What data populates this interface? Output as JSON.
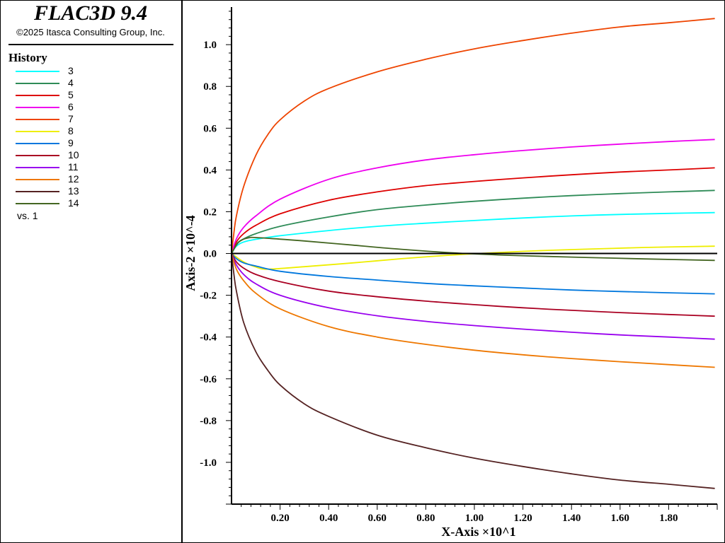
{
  "app": {
    "title": "FLAC3D 9.4",
    "copyright": "©2025 Itasca Consulting Group, Inc."
  },
  "legend": {
    "title": "History",
    "vs_label": "vs. 1"
  },
  "chart_data": {
    "type": "line",
    "xlabel": "X-Axis ×10^1",
    "ylabel": "Axis-2 ×10^-4",
    "xlim": [
      0,
      2.0
    ],
    "ylim": [
      -1.2,
      1.18
    ],
    "x_ticks": [
      "0.20",
      "0.40",
      "0.60",
      "0.80",
      "1.00",
      "1.20",
      "1.40",
      "1.60",
      "1.80"
    ],
    "y_ticks": [
      "1.0",
      "0.8",
      "0.6",
      "0.4",
      "0.2",
      "0.0",
      "-0.2",
      "-0.4",
      "-0.6",
      "-0.8",
      "-1.0"
    ],
    "zero_line": true,
    "grid": false,
    "series": [
      {
        "name": "3",
        "color": "#00FFFF",
        "points": [
          [
            0,
            0
          ],
          [
            0.02,
            0.035
          ],
          [
            0.05,
            0.055
          ],
          [
            0.1,
            0.068
          ],
          [
            0.2,
            0.085
          ],
          [
            0.4,
            0.11
          ],
          [
            0.6,
            0.13
          ],
          [
            0.8,
            0.145
          ],
          [
            1.0,
            0.158
          ],
          [
            1.2,
            0.17
          ],
          [
            1.4,
            0.18
          ],
          [
            1.6,
            0.187
          ],
          [
            1.8,
            0.192
          ],
          [
            1.99,
            0.196
          ]
        ]
      },
      {
        "name": "4",
        "color": "#2E8B57",
        "points": [
          [
            0,
            0
          ],
          [
            0.02,
            0.045
          ],
          [
            0.05,
            0.07
          ],
          [
            0.1,
            0.095
          ],
          [
            0.2,
            0.13
          ],
          [
            0.4,
            0.175
          ],
          [
            0.6,
            0.21
          ],
          [
            0.8,
            0.232
          ],
          [
            1.0,
            0.25
          ],
          [
            1.2,
            0.265
          ],
          [
            1.4,
            0.277
          ],
          [
            1.6,
            0.287
          ],
          [
            1.8,
            0.295
          ],
          [
            1.99,
            0.302
          ]
        ]
      },
      {
        "name": "5",
        "color": "#DD0000",
        "points": [
          [
            0,
            0
          ],
          [
            0.02,
            0.055
          ],
          [
            0.05,
            0.095
          ],
          [
            0.1,
            0.135
          ],
          [
            0.2,
            0.19
          ],
          [
            0.4,
            0.255
          ],
          [
            0.6,
            0.295
          ],
          [
            0.8,
            0.325
          ],
          [
            1.0,
            0.345
          ],
          [
            1.2,
            0.362
          ],
          [
            1.4,
            0.377
          ],
          [
            1.6,
            0.39
          ],
          [
            1.8,
            0.4
          ],
          [
            1.99,
            0.41
          ]
        ]
      },
      {
        "name": "6",
        "color": "#EE00EE",
        "points": [
          [
            0,
            0
          ],
          [
            0.02,
            0.07
          ],
          [
            0.05,
            0.125
          ],
          [
            0.1,
            0.18
          ],
          [
            0.2,
            0.26
          ],
          [
            0.4,
            0.355
          ],
          [
            0.6,
            0.41
          ],
          [
            0.8,
            0.448
          ],
          [
            1.0,
            0.473
          ],
          [
            1.2,
            0.493
          ],
          [
            1.4,
            0.51
          ],
          [
            1.6,
            0.524
          ],
          [
            1.8,
            0.536
          ],
          [
            1.99,
            0.546
          ]
        ]
      },
      {
        "name": "7",
        "color": "#EE4400",
        "points": [
          [
            0,
            0
          ],
          [
            0.01,
            0.1
          ],
          [
            0.02,
            0.18
          ],
          [
            0.05,
            0.32
          ],
          [
            0.1,
            0.47
          ],
          [
            0.15,
            0.57
          ],
          [
            0.2,
            0.64
          ],
          [
            0.3,
            0.73
          ],
          [
            0.4,
            0.79
          ],
          [
            0.6,
            0.87
          ],
          [
            0.8,
            0.93
          ],
          [
            1.0,
            0.98
          ],
          [
            1.2,
            1.02
          ],
          [
            1.4,
            1.055
          ],
          [
            1.6,
            1.085
          ],
          [
            1.8,
            1.105
          ],
          [
            1.99,
            1.125
          ]
        ]
      },
      {
        "name": "8",
        "color": "#EEEE00",
        "points": [
          [
            0,
            0
          ],
          [
            0.05,
            -0.04
          ],
          [
            0.1,
            -0.065
          ],
          [
            0.15,
            -0.075
          ],
          [
            0.3,
            -0.063
          ],
          [
            0.5,
            -0.045
          ],
          [
            0.7,
            -0.025
          ],
          [
            0.9,
            -0.008
          ],
          [
            1.1,
            0.005
          ],
          [
            1.3,
            0.015
          ],
          [
            1.5,
            0.022
          ],
          [
            1.7,
            0.029
          ],
          [
            1.99,
            0.035
          ]
        ]
      },
      {
        "name": "9",
        "color": "#0077DD",
        "points": [
          [
            0,
            0
          ],
          [
            0.02,
            -0.025
          ],
          [
            0.05,
            -0.045
          ],
          [
            0.1,
            -0.06
          ],
          [
            0.2,
            -0.085
          ],
          [
            0.4,
            -0.11
          ],
          [
            0.6,
            -0.127
          ],
          [
            0.8,
            -0.143
          ],
          [
            1.0,
            -0.155
          ],
          [
            1.2,
            -0.165
          ],
          [
            1.4,
            -0.175
          ],
          [
            1.6,
            -0.182
          ],
          [
            1.8,
            -0.188
          ],
          [
            1.99,
            -0.193
          ]
        ]
      },
      {
        "name": "10",
        "color": "#AA0022",
        "points": [
          [
            0,
            0
          ],
          [
            0.02,
            -0.04
          ],
          [
            0.05,
            -0.07
          ],
          [
            0.1,
            -0.1
          ],
          [
            0.2,
            -0.135
          ],
          [
            0.4,
            -0.18
          ],
          [
            0.6,
            -0.207
          ],
          [
            0.8,
            -0.228
          ],
          [
            1.0,
            -0.245
          ],
          [
            1.2,
            -0.26
          ],
          [
            1.4,
            -0.272
          ],
          [
            1.6,
            -0.283
          ],
          [
            1.8,
            -0.292
          ],
          [
            1.99,
            -0.3
          ]
        ]
      },
      {
        "name": "11",
        "color": "#9900EE",
        "points": [
          [
            0,
            0
          ],
          [
            0.02,
            -0.055
          ],
          [
            0.05,
            -0.1
          ],
          [
            0.1,
            -0.145
          ],
          [
            0.2,
            -0.2
          ],
          [
            0.4,
            -0.26
          ],
          [
            0.6,
            -0.298
          ],
          [
            0.8,
            -0.325
          ],
          [
            1.0,
            -0.345
          ],
          [
            1.2,
            -0.362
          ],
          [
            1.4,
            -0.377
          ],
          [
            1.6,
            -0.39
          ],
          [
            1.8,
            -0.4
          ],
          [
            1.99,
            -0.41
          ]
        ]
      },
      {
        "name": "12",
        "color": "#EE7700",
        "points": [
          [
            0,
            0
          ],
          [
            0.02,
            -0.075
          ],
          [
            0.05,
            -0.13
          ],
          [
            0.1,
            -0.19
          ],
          [
            0.2,
            -0.265
          ],
          [
            0.4,
            -0.35
          ],
          [
            0.6,
            -0.4
          ],
          [
            0.8,
            -0.435
          ],
          [
            1.0,
            -0.463
          ],
          [
            1.2,
            -0.485
          ],
          [
            1.4,
            -0.503
          ],
          [
            1.6,
            -0.518
          ],
          [
            1.8,
            -0.532
          ],
          [
            1.99,
            -0.545
          ]
        ]
      },
      {
        "name": "13",
        "color": "#552222",
        "points": [
          [
            0,
            0
          ],
          [
            0.01,
            -0.1
          ],
          [
            0.02,
            -0.18
          ],
          [
            0.05,
            -0.33
          ],
          [
            0.1,
            -0.47
          ],
          [
            0.15,
            -0.56
          ],
          [
            0.2,
            -0.63
          ],
          [
            0.3,
            -0.72
          ],
          [
            0.4,
            -0.78
          ],
          [
            0.6,
            -0.87
          ],
          [
            0.8,
            -0.93
          ],
          [
            1.0,
            -0.98
          ],
          [
            1.2,
            -1.02
          ],
          [
            1.4,
            -1.055
          ],
          [
            1.6,
            -1.085
          ],
          [
            1.8,
            -1.105
          ],
          [
            1.99,
            -1.125
          ]
        ]
      },
      {
        "name": "14",
        "color": "#446622",
        "points": [
          [
            0,
            0
          ],
          [
            0.03,
            0.055
          ],
          [
            0.07,
            0.075
          ],
          [
            0.12,
            0.075
          ],
          [
            0.3,
            0.06
          ],
          [
            0.5,
            0.04
          ],
          [
            0.7,
            0.02
          ],
          [
            0.9,
            0.004
          ],
          [
            1.1,
            -0.007
          ],
          [
            1.3,
            -0.014
          ],
          [
            1.5,
            -0.02
          ],
          [
            1.7,
            -0.026
          ],
          [
            1.99,
            -0.033
          ]
        ]
      }
    ]
  }
}
